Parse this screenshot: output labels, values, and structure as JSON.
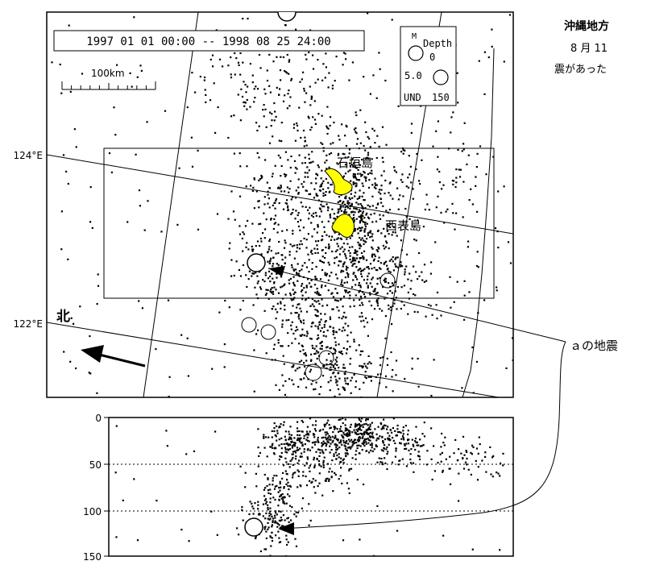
{
  "map": {
    "period_label": "1997 01 01 00:00 -- 1998 08 25 24:00",
    "scale_label": "100km",
    "lon_labels": [
      "124°E",
      "122°E"
    ],
    "north_label": "北",
    "island_labels": [
      "石垣島",
      "西表島"
    ],
    "island_color": "#ffff00",
    "legend": {
      "m_label": "M",
      "depth_label": "Depth",
      "depth_top": "0",
      "magnitude": "5.0",
      "und_label": "UND",
      "depth_bottom": "150"
    }
  },
  "cross_section": {
    "depth_ticks": [
      "0",
      "50",
      "100",
      "150"
    ]
  },
  "sidebar": {
    "title": "沖縄地方",
    "line1": "8 月 11",
    "line2": "震があった"
  },
  "callout": "ａの地震"
}
